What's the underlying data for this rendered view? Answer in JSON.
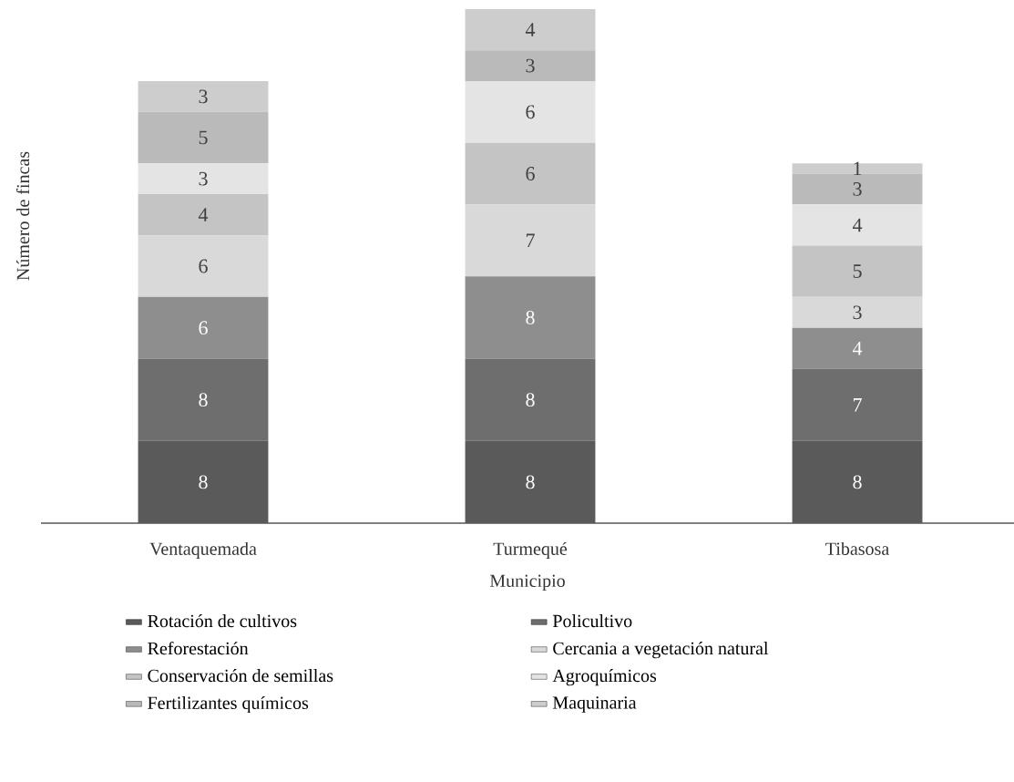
{
  "chart_data": {
    "type": "bar",
    "stacked": true,
    "data_labels": true,
    "legend": "bottom",
    "xlabel": "Municipio",
    "ylabel": "Número de fincas",
    "categories": [
      "Ventaquemada",
      "Turmequé",
      "Tibasosa"
    ],
    "series": [
      {
        "name": "Rotación de cultivos",
        "color": "#5a5a5a",
        "values": [
          8,
          8,
          8
        ]
      },
      {
        "name": "Policultivo",
        "color": "#6e6e6e",
        "values": [
          8,
          8,
          7
        ]
      },
      {
        "name": "Reforestación",
        "color": "#8e8e8e",
        "values": [
          6,
          8,
          4
        ]
      },
      {
        "name": "Cercania a vegetación natural",
        "color": "#d9d9d9",
        "values": [
          6,
          7,
          3
        ]
      },
      {
        "name": "Conservación de semillas",
        "color": "#c4c4c4",
        "values": [
          4,
          6,
          5
        ]
      },
      {
        "name": "Agroquímicos",
        "color": "#e4e4e4",
        "values": [
          3,
          6,
          4
        ]
      },
      {
        "name": "Fertilizantes químicos",
        "color": "#bababa",
        "values": [
          5,
          3,
          3
        ]
      },
      {
        "name": "Maquinaria",
        "color": "#cdcdcd",
        "values": [
          3,
          4,
          1
        ]
      }
    ]
  }
}
